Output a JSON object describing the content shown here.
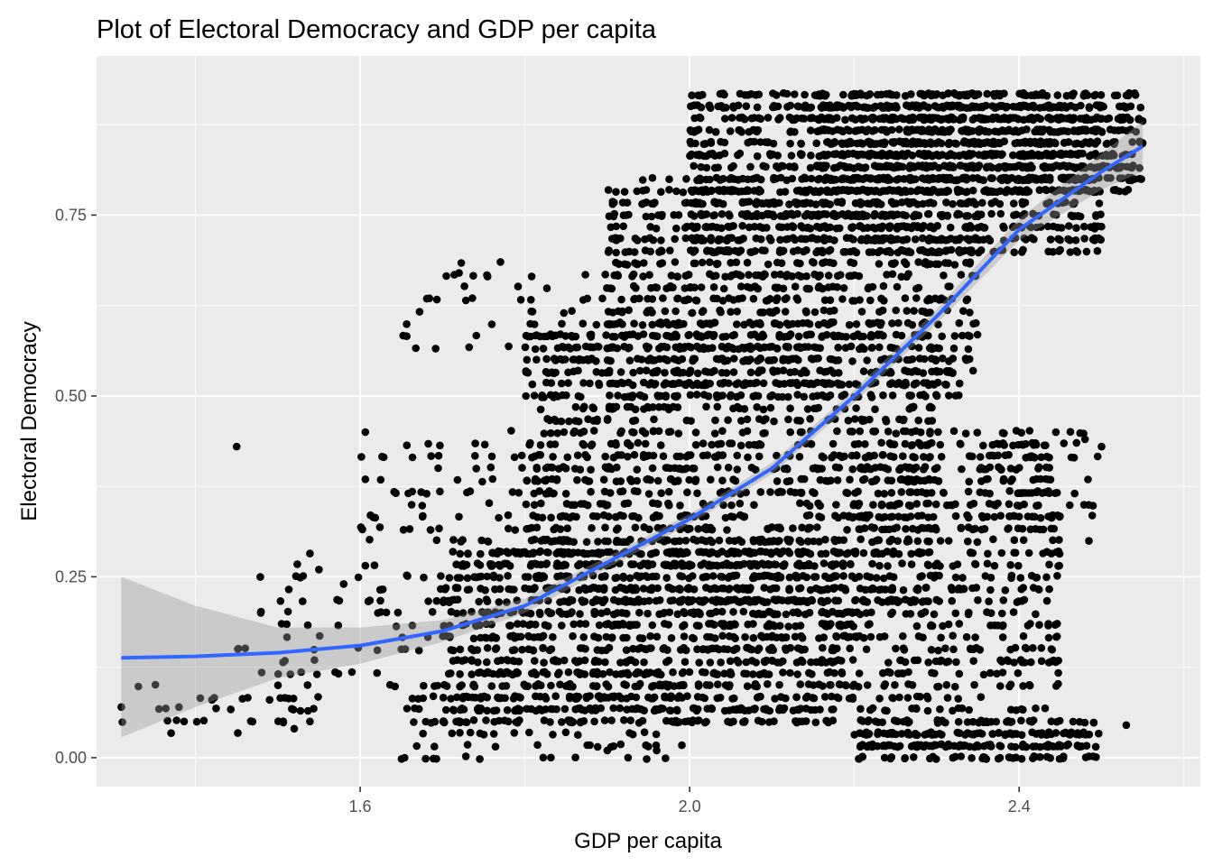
{
  "chart_data": {
    "type": "scatter",
    "title": "Plot of Electoral Democracy and GDP per capita",
    "xlabel": "GDP per capita",
    "ylabel": "Electoral Democracy",
    "xlim": [
      1.28,
      2.62
    ],
    "ylim": [
      -0.04,
      0.97
    ],
    "x_ticks": [
      {
        "value": 1.6,
        "label": "1.6"
      },
      {
        "value": 2.0,
        "label": "2.0"
      },
      {
        "value": 2.4,
        "label": "2.4"
      }
    ],
    "y_ticks": [
      {
        "value": 0.0,
        "label": "0.00"
      },
      {
        "value": 0.25,
        "label": "0.25"
      },
      {
        "value": 0.5,
        "label": "0.50"
      },
      {
        "value": 0.75,
        "label": "0.75"
      }
    ],
    "x_minor": [
      1.4,
      1.8,
      2.2,
      2.6
    ],
    "y_minor": [
      0.125,
      0.375,
      0.625,
      0.875
    ],
    "grid": true,
    "legend": "none",
    "colors": {
      "panel": "#ebebeb",
      "grid": "#ffffff",
      "points": "#000000",
      "smooth_line": "#3366ff",
      "ribbon": "#999999"
    },
    "scatter_clusters": [
      {
        "x": [
          1.31,
          1.55
        ],
        "y": [
          0.03,
          0.1
        ],
        "n": 35
      },
      {
        "x": [
          1.45,
          1.7
        ],
        "y": [
          0.1,
          0.28
        ],
        "n": 70
      },
      {
        "x": [
          1.6,
          1.8
        ],
        "y": [
          0.3,
          0.45
        ],
        "n": 60
      },
      {
        "x": [
          1.65,
          1.9
        ],
        "y": [
          0.55,
          0.68
        ],
        "n": 50
      },
      {
        "x": [
          1.65,
          2.0
        ],
        "y": [
          0.0,
          0.1
        ],
        "n": 120
      },
      {
        "x": [
          1.7,
          2.2
        ],
        "y": [
          0.05,
          0.3
        ],
        "n": 1200
      },
      {
        "x": [
          1.8,
          2.3
        ],
        "y": [
          0.2,
          0.6
        ],
        "n": 1300
      },
      {
        "x": [
          1.9,
          2.35
        ],
        "y": [
          0.5,
          0.8
        ],
        "n": 900
      },
      {
        "x": [
          2.0,
          2.5
        ],
        "y": [
          0.7,
          0.92
        ],
        "n": 1100
      },
      {
        "x": [
          2.15,
          2.55
        ],
        "y": [
          0.78,
          0.92
        ],
        "n": 800
      },
      {
        "x": [
          2.2,
          2.5
        ],
        "y": [
          0.0,
          0.05
        ],
        "n": 250
      },
      {
        "x": [
          2.2,
          2.45
        ],
        "y": [
          0.05,
          0.45
        ],
        "n": 500
      },
      {
        "x": [
          2.35,
          2.5
        ],
        "y": [
          0.3,
          0.45
        ],
        "n": 60
      }
    ],
    "scatter_points": [
      {
        "x": 1.31,
        "y": 0.07
      },
      {
        "x": 1.38,
        "y": 0.07
      },
      {
        "x": 1.42,
        "y": 0.08
      },
      {
        "x": 1.45,
        "y": 0.43
      },
      {
        "x": 1.49,
        "y": 0.08
      },
      {
        "x": 1.52,
        "y": 0.04
      },
      {
        "x": 1.55,
        "y": 0.26
      },
      {
        "x": 1.58,
        "y": 0.24
      },
      {
        "x": 1.72,
        "y": 0.67
      },
      {
        "x": 1.9,
        "y": 0.01
      },
      {
        "x": 1.96,
        "y": 0.01
      },
      {
        "x": 2.48,
        "y": 0.44
      },
      {
        "x": 2.5,
        "y": 0.43
      },
      {
        "x": 2.53,
        "y": 0.045
      },
      {
        "x": 2.55,
        "y": 0.88
      }
    ],
    "smooth_line": [
      {
        "x": 1.31,
        "y": 0.138,
        "lower": 0.028,
        "upper": 0.25
      },
      {
        "x": 1.4,
        "y": 0.14,
        "lower": 0.07,
        "upper": 0.21
      },
      {
        "x": 1.5,
        "y": 0.145,
        "lower": 0.11,
        "upper": 0.18
      },
      {
        "x": 1.6,
        "y": 0.155,
        "lower": 0.13,
        "upper": 0.18
      },
      {
        "x": 1.7,
        "y": 0.175,
        "lower": 0.16,
        "upper": 0.19
      },
      {
        "x": 1.8,
        "y": 0.21,
        "lower": 0.2,
        "upper": 0.22
      },
      {
        "x": 1.9,
        "y": 0.27,
        "lower": 0.262,
        "upper": 0.278
      },
      {
        "x": 2.0,
        "y": 0.33,
        "lower": 0.323,
        "upper": 0.337
      },
      {
        "x": 2.1,
        "y": 0.4,
        "lower": 0.392,
        "upper": 0.408
      },
      {
        "x": 2.2,
        "y": 0.5,
        "lower": 0.491,
        "upper": 0.509
      },
      {
        "x": 2.3,
        "y": 0.61,
        "lower": 0.6,
        "upper": 0.62
      },
      {
        "x": 2.4,
        "y": 0.73,
        "lower": 0.715,
        "upper": 0.745
      },
      {
        "x": 2.5,
        "y": 0.81,
        "lower": 0.785,
        "upper": 0.835
      },
      {
        "x": 2.55,
        "y": 0.845,
        "lower": 0.81,
        "upper": 0.88
      }
    ]
  }
}
